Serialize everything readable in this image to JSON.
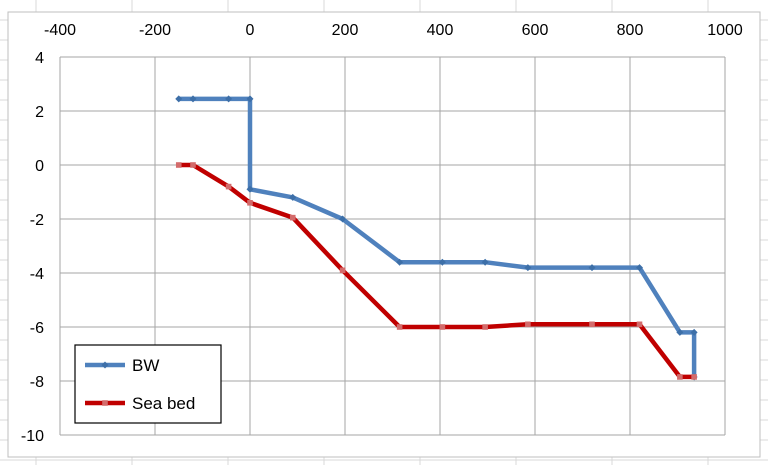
{
  "chart_data": {
    "type": "line",
    "title": "",
    "xlabel": "",
    "ylabel": "",
    "xlim": [
      -400,
      1000
    ],
    "ylim": [
      -10,
      4
    ],
    "x_ticks": [
      -400,
      -200,
      0,
      200,
      400,
      600,
      800,
      1000
    ],
    "y_ticks": [
      4,
      2,
      0,
      -2,
      -4,
      -6,
      -8,
      -10
    ],
    "x_tick_labels": [
      "-400",
      "-200",
      "0",
      "200",
      "400",
      "600",
      "800",
      "1000"
    ],
    "y_tick_labels": [
      "4",
      "2",
      "0",
      "-2",
      "-4",
      "-6",
      "-8",
      "-10"
    ],
    "x_axis_position": "top",
    "grid": true,
    "legend_position": "bottom-left",
    "series": [
      {
        "name": "BW",
        "color": "#4f81bd",
        "marker": "diamond",
        "points": [
          [
            -150,
            2.45
          ],
          [
            -120,
            2.45
          ],
          [
            -45,
            2.45
          ],
          [
            0,
            2.45
          ],
          [
            0,
            -0.9
          ],
          [
            90,
            -1.2
          ],
          [
            195,
            -2.0
          ],
          [
            315,
            -3.6
          ],
          [
            405,
            -3.6
          ],
          [
            495,
            -3.6
          ],
          [
            585,
            -3.8
          ],
          [
            720,
            -3.8
          ],
          [
            820,
            -3.8
          ],
          [
            905,
            -6.2
          ],
          [
            935,
            -6.2
          ],
          [
            935,
            -7.85
          ]
        ]
      },
      {
        "name": "Sea bed",
        "color": "#c00000",
        "marker": "square",
        "points": [
          [
            -150,
            0
          ],
          [
            -120,
            0
          ],
          [
            -45,
            -0.8
          ],
          [
            0,
            -1.4
          ],
          [
            90,
            -1.95
          ],
          [
            195,
            -3.9
          ],
          [
            315,
            -6.0
          ],
          [
            405,
            -6.0
          ],
          [
            495,
            -6.0
          ],
          [
            585,
            -5.9
          ],
          [
            720,
            -5.9
          ],
          [
            820,
            -5.9
          ],
          [
            905,
            -7.85
          ],
          [
            935,
            -7.85
          ]
        ]
      }
    ]
  }
}
